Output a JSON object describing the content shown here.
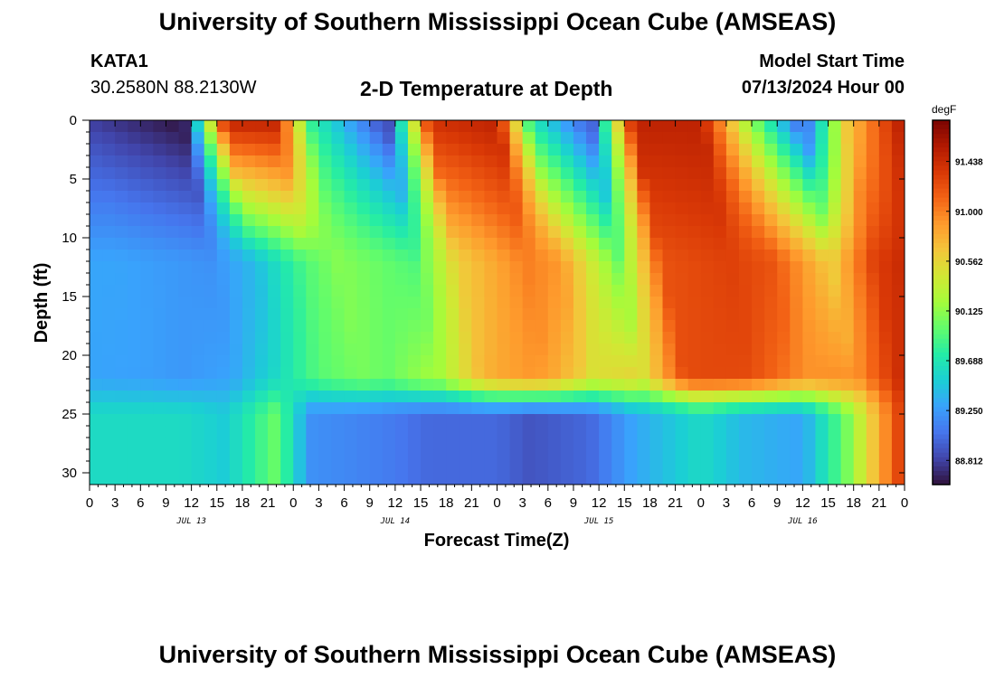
{
  "header": {
    "title": "University of Southern Mississippi Ocean Cube (AMSEAS)",
    "station_id": "KATA1",
    "station_coords": "30.2580N  88.2130W",
    "subtitle": "2-D Temperature at Depth",
    "model_start_label": "Model Start Time",
    "model_start_value": "07/13/2024 Hour 00"
  },
  "footer": {
    "title": "University of Southern Mississippi Ocean Cube (AMSEAS)"
  },
  "chart_data": {
    "type": "heatmap",
    "title": "2-D Temperature at Depth",
    "xlabel": "Forecast Time(Z)",
    "ylabel": "Depth (ft)",
    "x_tick_labels": [
      "0",
      "3",
      "6",
      "9",
      "12",
      "15",
      "18",
      "21",
      "0",
      "3",
      "6",
      "9",
      "12",
      "15",
      "18",
      "21",
      "0",
      "3",
      "6",
      "9",
      "12",
      "15",
      "18",
      "21",
      "0",
      "3",
      "6",
      "9",
      "12",
      "15",
      "18",
      "21",
      "0"
    ],
    "x_hours_range": [
      0,
      96
    ],
    "date_labels": [
      {
        "label": "JUL 13",
        "hour": 12
      },
      {
        "label": "JUL 14",
        "hour": 36
      },
      {
        "label": "JUL 15",
        "hour": 60
      },
      {
        "label": "JUL 16",
        "hour": 84
      }
    ],
    "y_ticks": [
      0,
      5,
      10,
      15,
      20,
      25,
      30
    ],
    "y_tick_labels": [
      "0",
      "5",
      "10",
      "15",
      "20",
      "25",
      "30"
    ],
    "ylim": [
      0,
      31
    ],
    "colorbar": {
      "unit": "degF",
      "tick_labels": [
        "91.438",
        "91.000",
        "90.562",
        "90.125",
        "89.688",
        "89.250",
        "88.812"
      ],
      "tick_values": [
        91.438,
        91.0,
        90.562,
        90.125,
        89.688,
        89.25,
        88.812
      ],
      "range": [
        88.6,
        91.8
      ],
      "colors": [
        "#30123b",
        "#4145ab",
        "#4675ed",
        "#39a2fc",
        "#1bcfd4",
        "#24eca6",
        "#61fc6c",
        "#a4fc3b",
        "#d1e834",
        "#f3c63a",
        "#fe9b2d",
        "#f36315",
        "#d93806",
        "#b11901",
        "#7a0402"
      ]
    },
    "grid": {
      "hours": [
        0,
        96
      ],
      "depths": [
        0,
        31
      ],
      "columns": 64,
      "rows": 31,
      "units": "degF",
      "values_note": "deep-layer temperature per column from column profile",
      "deep_layer_profile_by_hour": [
        {
          "hour": 0,
          "surface": 88.8,
          "mid": 89.3,
          "deep": 89.6
        },
        {
          "hour": 11,
          "surface": 88.6,
          "mid": 89.2,
          "deep": 89.6
        },
        {
          "hour": 16,
          "surface": 91.5,
          "mid": 89.4,
          "deep": 89.5
        },
        {
          "hour": 22,
          "surface": 91.5,
          "mid": 89.9,
          "deep": 90.0
        },
        {
          "hour": 26,
          "surface": 89.8,
          "mid": 90.1,
          "deep": 89.2
        },
        {
          "hour": 35,
          "surface": 88.8,
          "mid": 89.9,
          "deep": 89.1
        },
        {
          "hour": 40,
          "surface": 91.4,
          "mid": 90.6,
          "deep": 89.0
        },
        {
          "hour": 48,
          "surface": 91.5,
          "mid": 91.0,
          "deep": 89.0
        },
        {
          "hour": 52,
          "surface": 89.7,
          "mid": 90.9,
          "deep": 88.9
        },
        {
          "hour": 59,
          "surface": 88.9,
          "mid": 90.0,
          "deep": 89.0
        },
        {
          "hour": 64,
          "surface": 91.5,
          "mid": 91.2,
          "deep": 89.3
        },
        {
          "hour": 72,
          "surface": 91.5,
          "mid": 91.3,
          "deep": 89.6
        },
        {
          "hour": 77,
          "surface": 90.3,
          "mid": 91.2,
          "deep": 89.4
        },
        {
          "hour": 84,
          "surface": 88.9,
          "mid": 90.6,
          "deep": 89.3
        },
        {
          "hour": 89,
          "surface": 90.6,
          "mid": 91.3,
          "deep": 90.0
        },
        {
          "hour": 96,
          "surface": 91.6,
          "mid": 91.6,
          "deep": 91.4
        }
      ]
    }
  }
}
